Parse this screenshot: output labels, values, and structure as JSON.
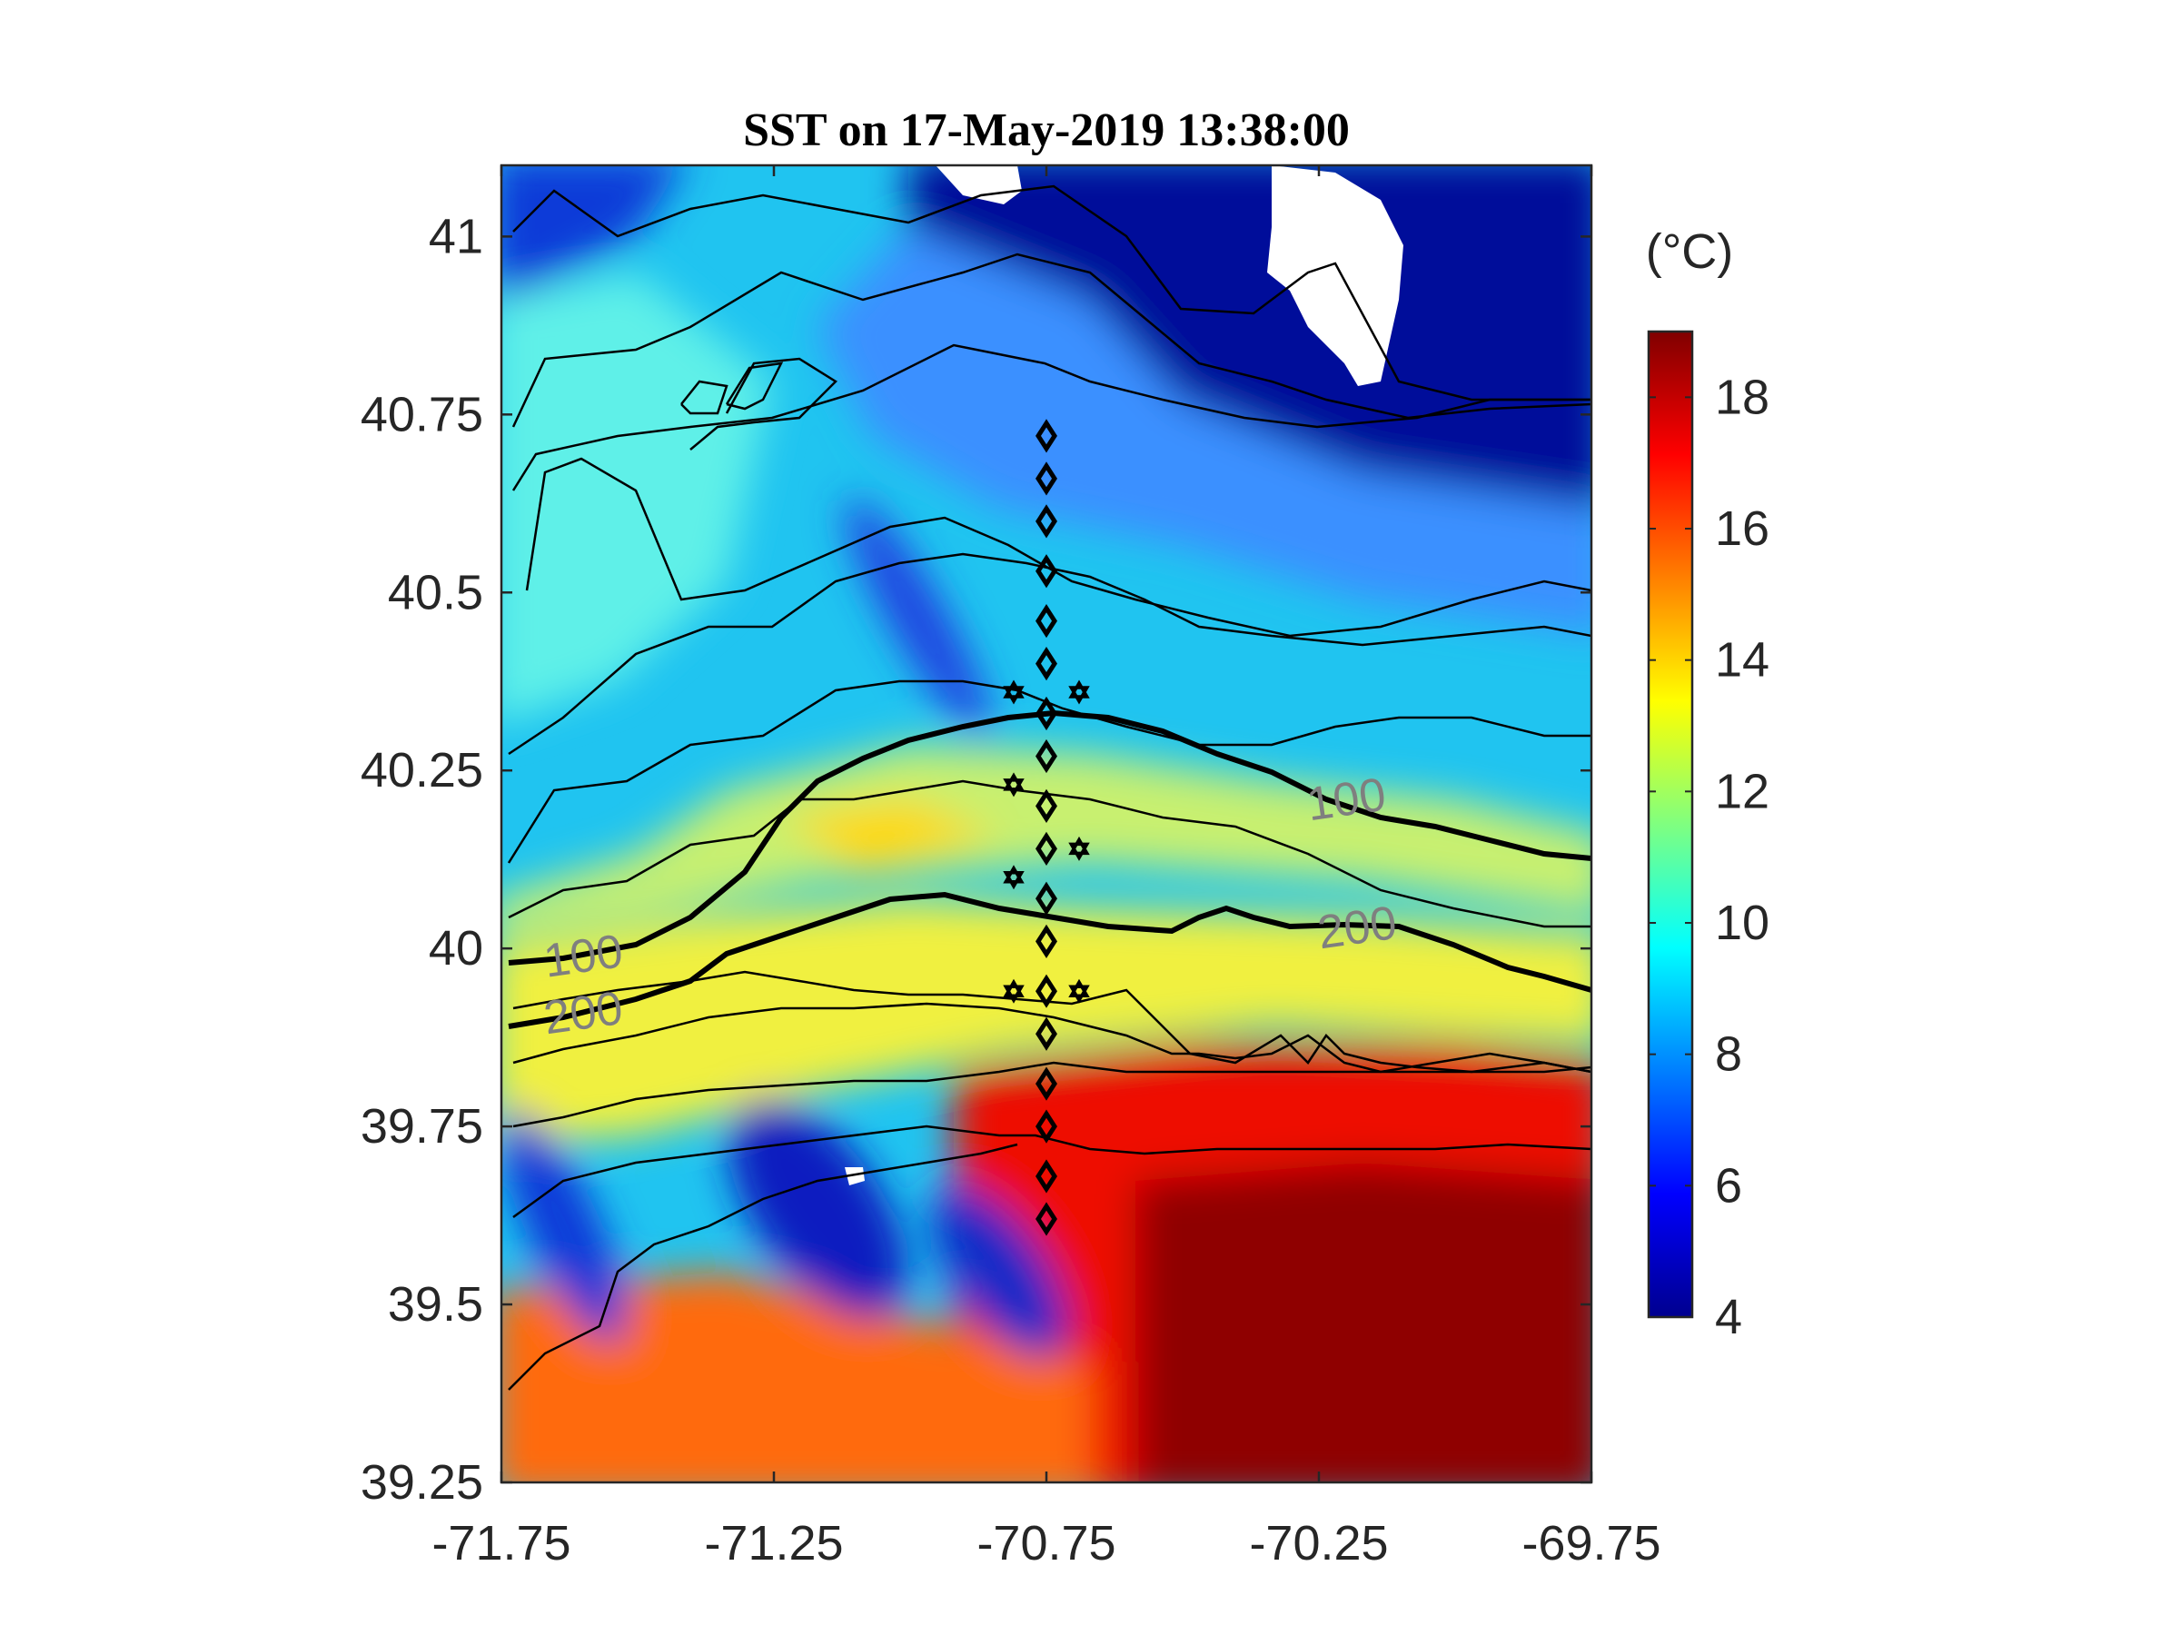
{
  "chart_data": {
    "type": "heatmap",
    "title": "SST on 17-May-2019 13:38:00",
    "xlim": [
      -71.75,
      -69.75
    ],
    "ylim": [
      39.25,
      41.1
    ],
    "x_ticks": [
      -71.75,
      -71.25,
      -70.75,
      -70.25,
      -69.75
    ],
    "x_tick_labels": [
      "-71.75",
      "-71.25",
      "-70.75",
      "-70.25",
      "-69.75"
    ],
    "y_ticks": [
      39.25,
      39.5,
      39.75,
      40,
      40.25,
      40.5,
      40.75,
      41
    ],
    "y_tick_labels": [
      "39.25",
      "39.5",
      "39.75",
      "40",
      "40.25",
      "40.5",
      "40.75",
      "41"
    ],
    "colorbar": {
      "label": "(°C)",
      "range": [
        4,
        19
      ],
      "ticks": [
        4,
        6,
        8,
        10,
        12,
        14,
        16,
        18
      ],
      "tick_labels": [
        "4",
        "6",
        "8",
        "10",
        "12",
        "14",
        "16",
        "18"
      ],
      "colormap": "jet"
    },
    "sst_field_description_bands": [
      {
        "lat_above": 40.7,
        "temperature_c": 4.5
      },
      {
        "lat_from": 40.3,
        "lat_to": 40.7,
        "temperature_c": 9
      },
      {
        "lat_from": 40.0,
        "lat_to": 40.3,
        "temperature_c": 10.5
      },
      {
        "lat_from": 39.8,
        "lat_to": 40.0,
        "temperature_c": 13
      },
      {
        "lat_below": 39.8,
        "temperature_c": 17.5
      }
    ],
    "bathymetry_contours": [
      {
        "label": "100",
        "lon": [
          -71.75,
          -71.6,
          -71.4,
          -71.2,
          -71.0,
          -70.8,
          -70.6,
          -70.4,
          -70.2,
          -70.0,
          -69.75
        ],
        "lat": [
          39.97,
          39.99,
          40.07,
          40.24,
          40.3,
          40.33,
          40.3,
          40.24,
          40.2,
          40.17,
          40.13
        ]
      },
      {
        "label": "200",
        "lon": [
          -71.75,
          -71.6,
          -71.4,
          -71.2,
          -71.0,
          -70.8,
          -70.6,
          -70.4,
          -70.2,
          -70.0,
          -69.75
        ],
        "lat": [
          39.89,
          39.93,
          40.0,
          40.06,
          40.08,
          40.05,
          40.02,
          40.04,
          40.03,
          40.0,
          39.93
        ]
      }
    ],
    "contour_labels": [
      {
        "text": "100",
        "lon": -71.6,
        "lat": 39.99
      },
      {
        "text": "100",
        "lon": -70.2,
        "lat": 40.21
      },
      {
        "text": "200",
        "lon": -71.6,
        "lat": 39.91
      },
      {
        "text": "200",
        "lon": -70.18,
        "lat": 40.03
      }
    ],
    "station_diamonds": {
      "lon": -70.75,
      "lat": [
        40.72,
        40.66,
        40.6,
        40.53,
        40.46,
        40.4,
        40.33,
        40.27,
        40.2,
        40.14,
        40.07,
        40.01,
        39.94,
        39.88,
        39.81,
        39.75,
        39.68,
        39.62
      ]
    },
    "station_stars": [
      {
        "lon": -70.81,
        "lat": 40.36
      },
      {
        "lon": -70.69,
        "lat": 40.36
      },
      {
        "lon": -70.81,
        "lat": 40.23
      },
      {
        "lon": -70.69,
        "lat": 40.14
      },
      {
        "lon": -70.81,
        "lat": 40.1
      },
      {
        "lon": -70.81,
        "lat": 39.94
      },
      {
        "lon": -70.69,
        "lat": 39.94
      }
    ],
    "grid": false
  }
}
